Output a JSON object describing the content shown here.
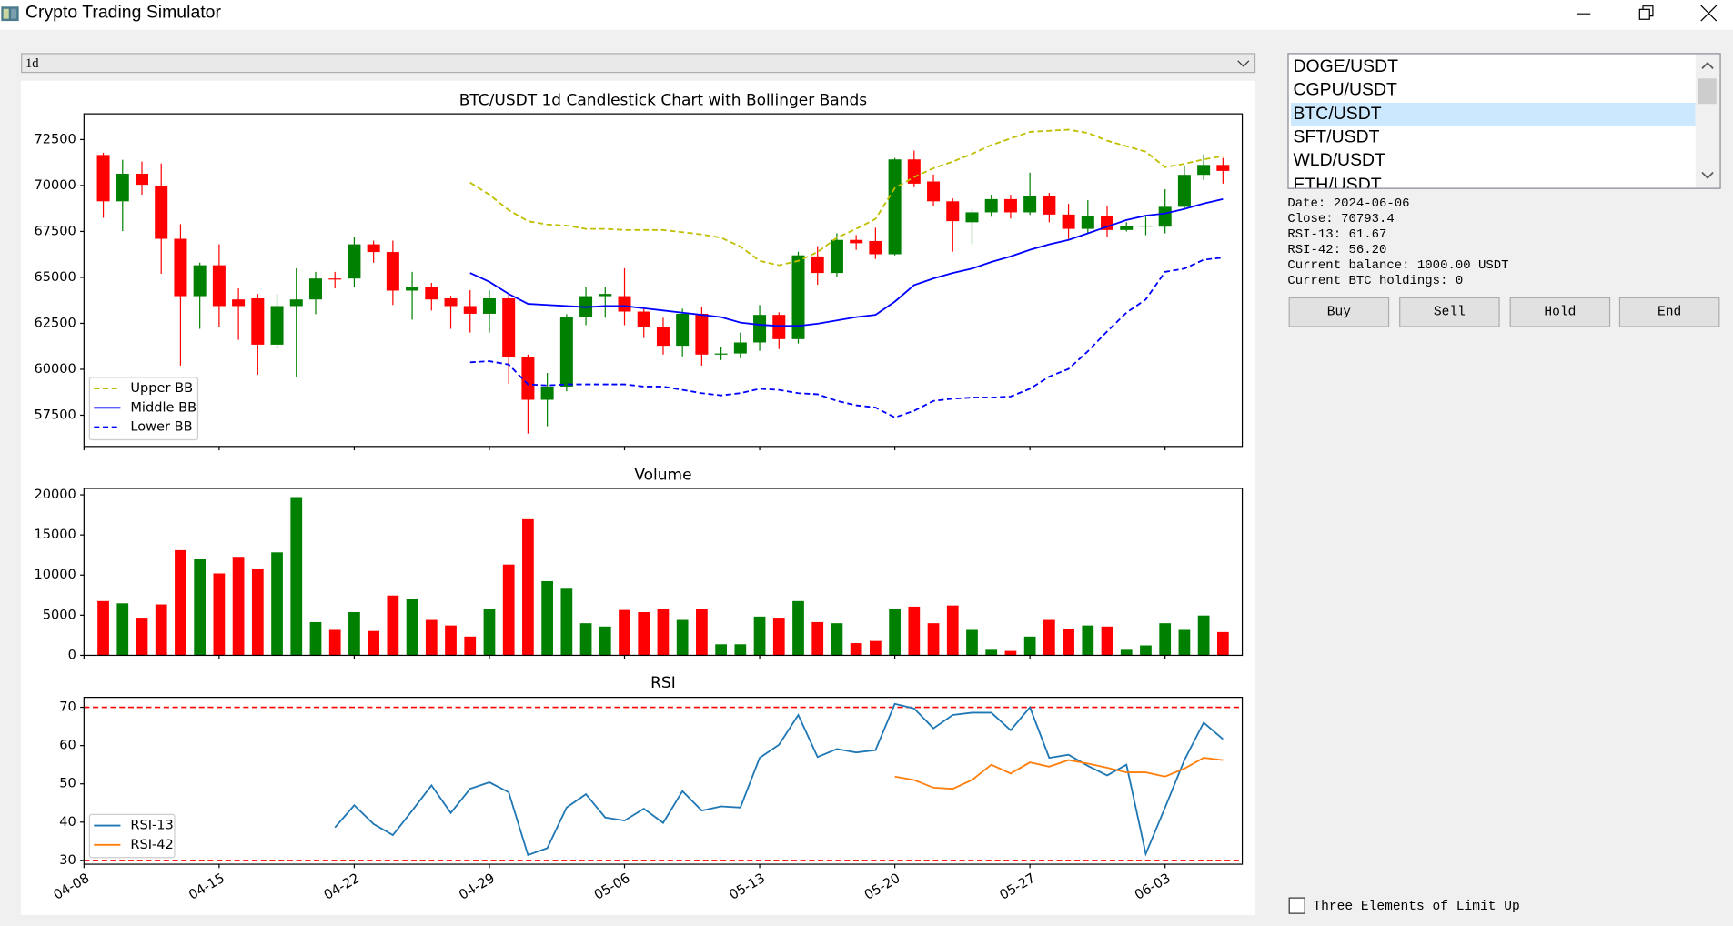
{
  "window_title": "Crypto Trading Simulator",
  "timeframe": "1d",
  "pairs": {
    "items": [
      "DOGE/USDT",
      "CGPU/USDT",
      "BTC/USDT",
      "SFT/USDT",
      "WLD/USDT",
      "ETH/USDT"
    ],
    "selected": 2
  },
  "info": [
    "Date: 2024-06-06",
    "Close: 70793.4",
    "RSI-13: 61.67",
    "RSI-42: 56.20",
    "Current balance: 1000.00 USDT",
    "Current BTC holdings: 0"
  ],
  "buttons": [
    "Buy",
    "Sell",
    "Hold",
    "End"
  ],
  "checkbox": {
    "label": "Three Elements of Limit Up",
    "checked": false
  },
  "chart_data": [
    {
      "type": "candlestick",
      "title": "BTC/USDT 1d Candlestick Chart with Bollinger Bands",
      "x": [
        "04-09",
        "04-10",
        "04-11",
        "04-12",
        "04-13",
        "04-14",
        "04-15",
        "04-16",
        "04-17",
        "04-18",
        "04-19",
        "04-20",
        "04-21",
        "04-22",
        "04-23",
        "04-24",
        "04-25",
        "04-26",
        "04-27",
        "04-28",
        "04-29",
        "04-30",
        "05-01",
        "05-02",
        "05-03",
        "05-04",
        "05-05",
        "05-06",
        "05-07",
        "05-08",
        "05-09",
        "05-10",
        "05-11",
        "05-12",
        "05-13",
        "05-14",
        "05-15",
        "05-16",
        "05-17",
        "05-18",
        "05-19",
        "05-20",
        "05-21",
        "05-22",
        "05-23",
        "05-24",
        "05-25",
        "05-26",
        "05-27",
        "05-28",
        "05-29",
        "05-30",
        "05-31",
        "06-01",
        "06-02",
        "06-03",
        "06-04",
        "06-05",
        "06-06"
      ],
      "open": [
        71660,
        69140,
        70640,
        69980,
        67100,
        63980,
        65660,
        63800,
        63860,
        61340,
        63440,
        63800,
        64940,
        64940,
        66800,
        66380,
        64280,
        64460,
        63860,
        63440,
        63020,
        63860,
        60680,
        58340,
        59060,
        62840,
        63980,
        63980,
        63140,
        62300,
        61280,
        63020,
        60800,
        60860,
        61460,
        62960,
        61640,
        66140,
        65240,
        67040,
        66980,
        66260,
        71420,
        70220,
        69140,
        68000,
        68540,
        69260,
        68540,
        69440,
        68420,
        67640,
        68360,
        67580,
        67780,
        67760,
        68840,
        70580,
        71120
      ],
      "high": [
        71780,
        71400,
        71300,
        71200,
        67900,
        65800,
        66800,
        64400,
        64100,
        64100,
        65500,
        65300,
        65300,
        67200,
        67000,
        67000,
        65300,
        64700,
        64000,
        64300,
        64300,
        64100,
        60800,
        59800,
        63000,
        64500,
        64500,
        65500,
        63300,
        62800,
        63300,
        63400,
        61200,
        62000,
        63500,
        63100,
        66400,
        66700,
        67400,
        67300,
        67700,
        71500,
        71900,
        70600,
        69300,
        68700,
        69500,
        69500,
        70700,
        69600,
        69000,
        69200,
        68900,
        68000,
        68300,
        69800,
        71100,
        71700,
        71500
      ],
      "low": [
        68240,
        67520,
        69500,
        65200,
        60200,
        62200,
        62300,
        61600,
        59700,
        61100,
        59600,
        63000,
        64400,
        64500,
        65800,
        63500,
        62700,
        63200,
        62200,
        62000,
        62000,
        59200,
        56500,
        56900,
        58800,
        62400,
        62800,
        62400,
        61700,
        60800,
        60700,
        60200,
        60500,
        60600,
        61000,
        61100,
        61400,
        64600,
        65000,
        66500,
        66000,
        66200,
        69900,
        68900,
        66400,
        66800,
        68300,
        68200,
        68400,
        68000,
        67100,
        67400,
        67200,
        67500,
        67300,
        67400,
        68700,
        70300,
        70100
      ],
      "close": [
        69140,
        70640,
        70040,
        67100,
        63980,
        65660,
        63440,
        63440,
        61340,
        63440,
        63800,
        64940,
        64900,
        66800,
        66380,
        64280,
        64460,
        63800,
        63440,
        63020,
        63860,
        60680,
        58340,
        59060,
        62840,
        63980,
        64100,
        63140,
        62300,
        61280,
        63020,
        60800,
        60860,
        61460,
        62960,
        61640,
        66200,
        65240,
        67040,
        66860,
        66260,
        71420,
        70100,
        69140,
        68060,
        68540,
        69260,
        68540,
        69440,
        68420,
        67640,
        68360,
        67580,
        67820,
        67820,
        68840,
        70580,
        71120,
        70793.4
      ],
      "up_color": "green",
      "down_color": "red",
      "series": [
        {
          "name": "Upper BB",
          "color": "#bfbf00",
          "linestyle": "dashed",
          "values": [
            null,
            null,
            null,
            null,
            null,
            null,
            null,
            null,
            null,
            null,
            null,
            null,
            null,
            null,
            null,
            null,
            null,
            null,
            null,
            70160,
            69500,
            68660,
            68060,
            67880,
            67820,
            67640,
            67640,
            67580,
            67580,
            67580,
            67460,
            67340,
            67160,
            66680,
            65900,
            65660,
            65900,
            66380,
            67160,
            67640,
            68180,
            69860,
            70460,
            70940,
            71300,
            71720,
            72200,
            72560,
            72920,
            72980,
            73040,
            72860,
            72440,
            72140,
            71840,
            71000,
            71180,
            71420,
            71600
          ]
        },
        {
          "name": "Middle BB",
          "color": "blue",
          "linestyle": "solid",
          "values": [
            null,
            null,
            null,
            null,
            null,
            null,
            null,
            null,
            null,
            null,
            null,
            null,
            null,
            null,
            null,
            null,
            null,
            null,
            null,
            65240,
            64760,
            64100,
            63560,
            63500,
            63440,
            63380,
            63440,
            63440,
            63320,
            63200,
            63080,
            62960,
            62840,
            62540,
            62420,
            62360,
            62360,
            62480,
            62660,
            62840,
            62960,
            63680,
            64580,
            64940,
            65240,
            65480,
            65840,
            66140,
            66500,
            66800,
            67040,
            67400,
            67760,
            68120,
            68360,
            68480,
            68720,
            69020,
            69260
          ]
        },
        {
          "name": "Lower BB",
          "color": "blue",
          "linestyle": "dashed",
          "values": [
            null,
            null,
            null,
            null,
            null,
            null,
            null,
            null,
            null,
            null,
            null,
            null,
            null,
            null,
            null,
            null,
            null,
            null,
            null,
            60380,
            60440,
            60260,
            59180,
            59120,
            59180,
            59180,
            59180,
            59180,
            59060,
            59060,
            58880,
            58700,
            58580,
            58700,
            58940,
            58880,
            58700,
            58640,
            58280,
            58040,
            57920,
            57380,
            57740,
            58280,
            58400,
            58460,
            58460,
            58520,
            58940,
            59600,
            60020,
            60980,
            62060,
            63080,
            63800,
            65300,
            65480,
            65960,
            66080
          ]
        }
      ],
      "xlim": [
        "04-08",
        "06-07"
      ],
      "ylim": [
        55800,
        73900
      ],
      "yticks": [
        57500,
        60000,
        62500,
        65000,
        67500,
        70000,
        72500
      ],
      "legend": "lower left",
      "grid": false
    },
    {
      "type": "bar",
      "title": "Volume",
      "x": [
        "04-09",
        "04-10",
        "04-11",
        "04-12",
        "04-13",
        "04-14",
        "04-15",
        "04-16",
        "04-17",
        "04-18",
        "04-19",
        "04-20",
        "04-21",
        "04-22",
        "04-23",
        "04-24",
        "04-25",
        "04-26",
        "04-27",
        "04-28",
        "04-29",
        "04-30",
        "05-01",
        "05-02",
        "05-03",
        "05-04",
        "05-05",
        "05-06",
        "05-07",
        "05-08",
        "05-09",
        "05-10",
        "05-11",
        "05-12",
        "05-13",
        "05-14",
        "05-15",
        "05-16",
        "05-17",
        "05-18",
        "05-19",
        "05-20",
        "05-21",
        "05-22",
        "05-23",
        "05-24",
        "05-25",
        "05-26",
        "05-27",
        "05-28",
        "05-29",
        "05-30",
        "05-31",
        "06-01",
        "06-02",
        "06-03",
        "06-04",
        "06-05",
        "06-06"
      ],
      "values": [
        6760,
        6480,
        4690,
        6340,
        13100,
        12000,
        10200,
        12270,
        10760,
        12830,
        19720,
        4140,
        3170,
        5380,
        3030,
        7450,
        7030,
        4410,
        3720,
        2340,
        5790,
        11310,
        16960,
        9240,
        8410,
        4000,
        3590,
        5650,
        5380,
        5790,
        4410,
        5790,
        1380,
        1380,
        4830,
        4690,
        6760,
        4140,
        4000,
        1520,
        1790,
        5790,
        6070,
        4000,
        6210,
        3170,
        690,
        550,
        2340,
        4410,
        3310,
        3720,
        3590,
        690,
        1240,
        4000,
        3170,
        4960,
        2900
      ],
      "up_color": "green",
      "down_color": "red",
      "xlim": [
        "04-08",
        "06-07"
      ],
      "ylim": [
        0,
        20800
      ],
      "yticks": [
        0,
        5000,
        10000,
        15000,
        20000
      ],
      "grid": false
    },
    {
      "type": "line",
      "title": "RSI",
      "x": [
        "04-09",
        "04-10",
        "04-11",
        "04-12",
        "04-13",
        "04-14",
        "04-15",
        "04-16",
        "04-17",
        "04-18",
        "04-19",
        "04-20",
        "04-21",
        "04-22",
        "04-23",
        "04-24",
        "04-25",
        "04-26",
        "04-27",
        "04-28",
        "04-29",
        "04-30",
        "05-01",
        "05-02",
        "05-03",
        "05-04",
        "05-05",
        "05-06",
        "05-07",
        "05-08",
        "05-09",
        "05-10",
        "05-11",
        "05-12",
        "05-13",
        "05-14",
        "05-15",
        "05-16",
        "05-17",
        "05-18",
        "05-19",
        "05-20",
        "05-21",
        "05-22",
        "05-23",
        "05-24",
        "05-25",
        "05-26",
        "05-27",
        "05-28",
        "05-29",
        "05-30",
        "05-31",
        "06-01",
        "06-02",
        "06-03",
        "06-04",
        "06-05",
        "06-06"
      ],
      "series": [
        {
          "name": "RSI-13",
          "color": "#1f77b4",
          "linestyle": "solid",
          "values": [
            null,
            null,
            null,
            null,
            null,
            null,
            null,
            null,
            null,
            null,
            null,
            null,
            38.6,
            44.4,
            39.5,
            36.6,
            43,
            49.6,
            42.4,
            48.7,
            50.4,
            47.8,
            31.4,
            33.2,
            43.8,
            47.3,
            41.2,
            40.4,
            43.5,
            39.8,
            48.1,
            43,
            44.1,
            43.8,
            56.8,
            60.2,
            68,
            57,
            59.1,
            58.2,
            58.8,
            70.9,
            69.7,
            64.5,
            68,
            68.6,
            68.6,
            64,
            70,
            56.8,
            57.6,
            54.7,
            52.2,
            55,
            31.7,
            43.8,
            56.2,
            66,
            61.67
          ]
        },
        {
          "name": "RSI-42",
          "color": "#ff7f0e",
          "linestyle": "solid",
          "values": [
            null,
            null,
            null,
            null,
            null,
            null,
            null,
            null,
            null,
            null,
            null,
            null,
            null,
            null,
            null,
            null,
            null,
            null,
            null,
            null,
            null,
            null,
            null,
            null,
            null,
            null,
            null,
            null,
            null,
            null,
            null,
            null,
            null,
            null,
            null,
            null,
            null,
            null,
            null,
            null,
            null,
            51.9,
            51,
            49,
            48.7,
            51,
            55,
            52.7,
            55.6,
            54.5,
            56.2,
            55.3,
            54.2,
            53,
            53,
            51.9,
            54,
            56.8,
            56.2
          ]
        }
      ],
      "hlines": [
        70,
        30
      ],
      "hline_color": "red",
      "xlim": [
        "04-08",
        "06-07"
      ],
      "ylim": [
        29,
        72.6
      ],
      "xticks": [
        "04-08",
        "04-15",
        "04-22",
        "04-29",
        "05-06",
        "05-13",
        "05-20",
        "05-27",
        "06-03"
      ],
      "yticks": [
        30,
        40,
        50,
        60,
        70
      ],
      "legend": "lower left",
      "grid": false
    }
  ]
}
